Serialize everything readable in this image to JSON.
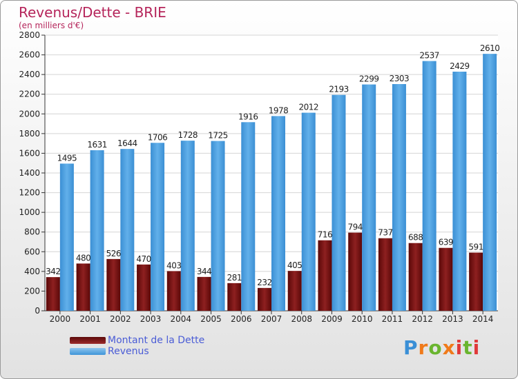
{
  "title": "Revenus/Dette - BRIE",
  "subtitle": "(en milliers d'€)",
  "colors": {
    "debt": "#7a1414",
    "revenue": "#4aa0e0",
    "title": "#b5245a",
    "legend_text": "#4a5cd6"
  },
  "legend": {
    "debt_label": "Montant de la Dette",
    "revenue_label": "Revenus"
  },
  "logo": {
    "text": "Proxiti"
  },
  "chart_data": {
    "type": "bar",
    "title": "Revenus/Dette - BRIE",
    "ylabel": "(en milliers d'€)",
    "xlabel": "",
    "ylim": [
      0,
      2800
    ],
    "yticks": [
      0,
      200,
      400,
      600,
      800,
      1000,
      1200,
      1400,
      1600,
      1800,
      2000,
      2200,
      2400,
      2600,
      2800
    ],
    "grid": true,
    "legend_position": "bottom-left",
    "categories": [
      "2000",
      "2001",
      "2002",
      "2003",
      "2004",
      "2005",
      "2006",
      "2007",
      "2008",
      "2009",
      "2010",
      "2011",
      "2012",
      "2013",
      "2014"
    ],
    "series": [
      {
        "name": "Montant de la Dette",
        "values": [
          342,
          480,
          526,
          470,
          403,
          344,
          281,
          232,
          405,
          716,
          794,
          737,
          688,
          639,
          591
        ]
      },
      {
        "name": "Revenus",
        "values": [
          1495,
          1631,
          1644,
          1706,
          1728,
          1725,
          1916,
          1978,
          2012,
          2193,
          2299,
          2303,
          2537,
          2429,
          2610
        ]
      }
    ]
  }
}
